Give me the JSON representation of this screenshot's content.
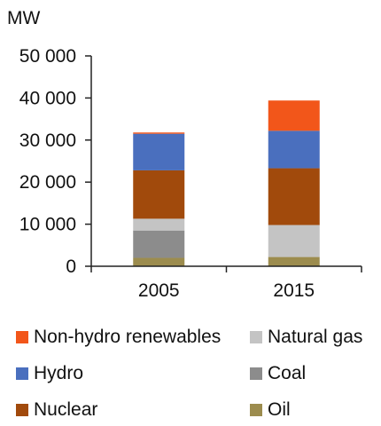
{
  "chart_data": {
    "type": "bar",
    "stacked": true,
    "unit": "MW",
    "categories": [
      "2005",
      "2015"
    ],
    "ylim": [
      0,
      50000
    ],
    "yticks": [
      0,
      10000,
      20000,
      30000,
      40000,
      50000
    ],
    "ytick_labels": [
      "0",
      "10 000",
      "20 000",
      "30 000",
      "40 000",
      "50 000"
    ],
    "grid": false,
    "legend_position": "bottom",
    "series": [
      {
        "name": "Oil",
        "color": "#9C8C4E",
        "values": [
          2000,
          2200
        ]
      },
      {
        "name": "Coal",
        "color": "#8C8C8C",
        "values": [
          6500,
          0
        ]
      },
      {
        "name": "Natural gas",
        "color": "#C4C4C4",
        "values": [
          2800,
          7600
        ]
      },
      {
        "name": "Nuclear",
        "color": "#A14A0C",
        "values": [
          11500,
          13500
        ]
      },
      {
        "name": "Hydro",
        "color": "#4A6FBE",
        "values": [
          8700,
          8900
        ]
      },
      {
        "name": "Non-hydro renewables",
        "color": "#F2561A",
        "values": [
          300,
          7200
        ]
      }
    ]
  },
  "legend": {
    "items": [
      {
        "label": "Non-hydro renewables",
        "color": "#F2561A"
      },
      {
        "label": "Natural gas",
        "color": "#C4C4C4"
      },
      {
        "label": "Hydro",
        "color": "#4A6FBE"
      },
      {
        "label": "Coal",
        "color": "#8C8C8C"
      },
      {
        "label": "Nuclear",
        "color": "#A14A0C"
      },
      {
        "label": "Oil",
        "color": "#9C8C4E"
      }
    ]
  }
}
